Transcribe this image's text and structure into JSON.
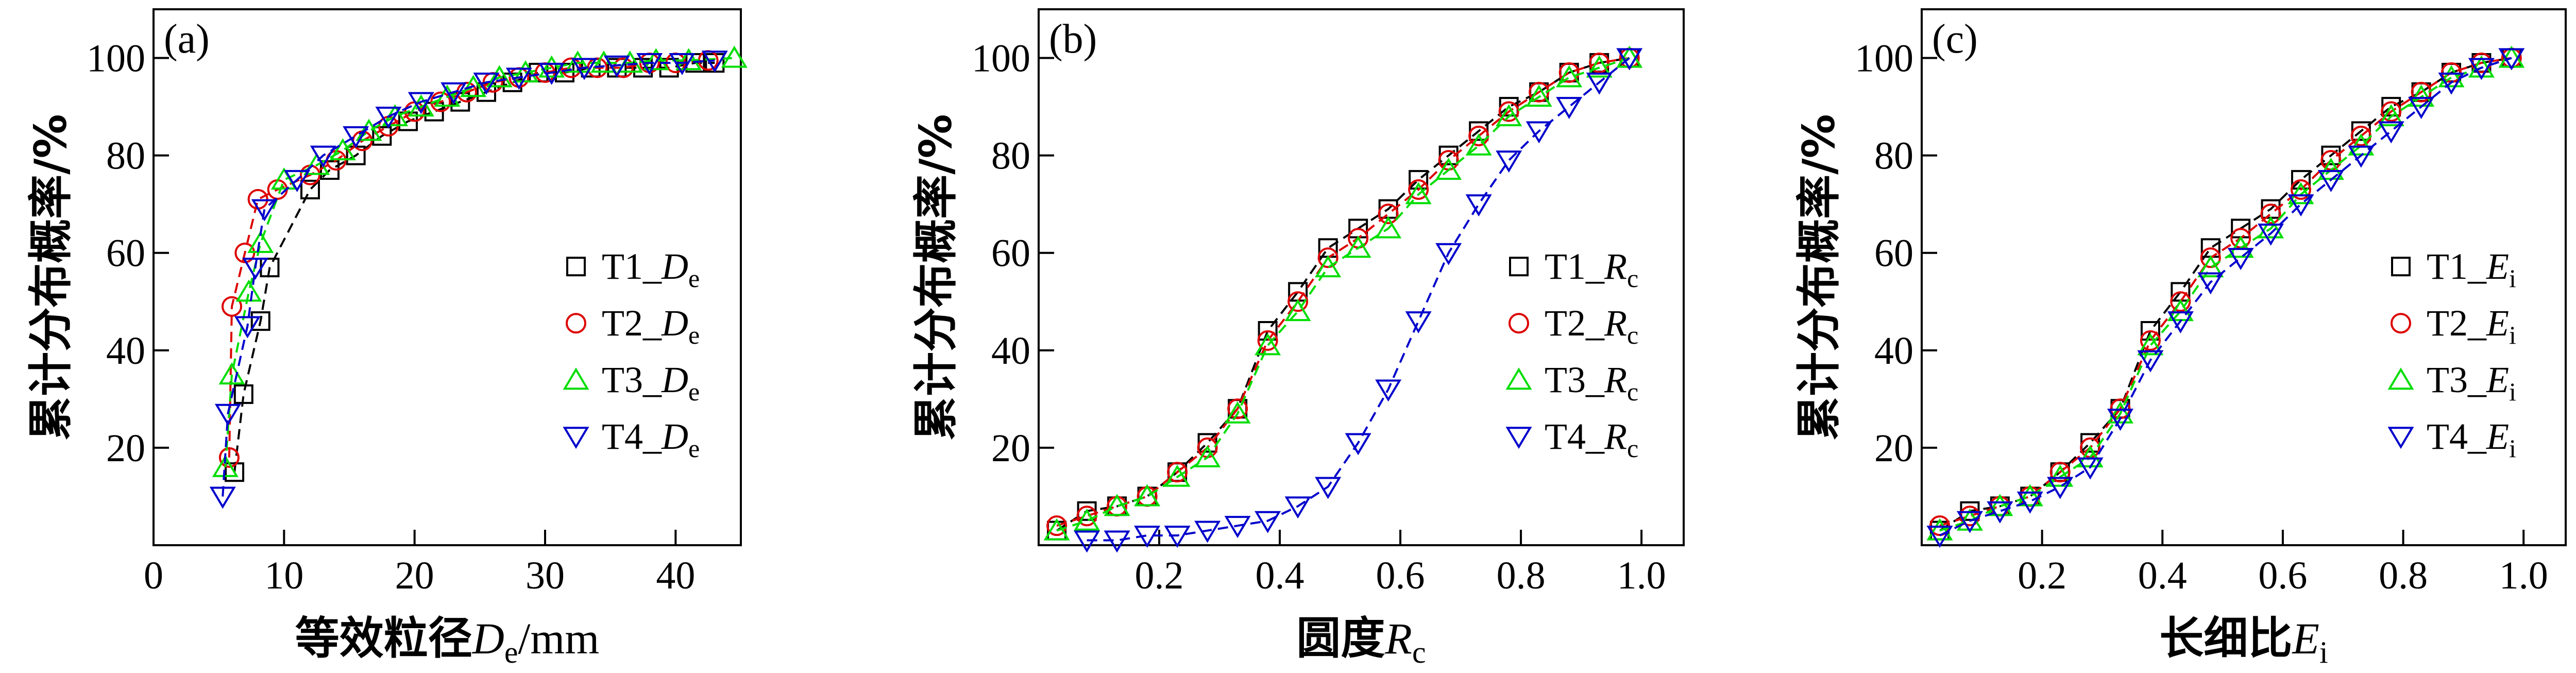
{
  "chart_data": [
    {
      "type": "scatter",
      "panel_label": "(a)",
      "xlabel": "等效粒径",
      "xlabel_symbol": "D",
      "xlabel_subscript": "e",
      "xlabel_unit": "/mm",
      "ylabel": "累计分布概率/%",
      "xlim": [
        0,
        45
      ],
      "ylim": [
        0,
        110
      ],
      "xticks": [
        0,
        10,
        20,
        30,
        40
      ],
      "yticks": [
        20,
        40,
        60,
        80,
        100
      ],
      "legend_position": "right",
      "series": [
        {
          "name": "T1_",
          "symbol": "D",
          "subscript": "e",
          "marker": "square",
          "color": "#000000",
          "x": [
            6.2,
            6.9,
            8.2,
            8.9,
            12,
            13.5,
            15.5,
            17.5,
            19.5,
            21.5,
            23.5,
            25.5,
            27.5,
            29.5,
            31.5,
            33.5,
            35.5,
            37.5,
            39.5,
            41.5,
            43
          ],
          "y": [
            15,
            31,
            46,
            57,
            73,
            77,
            80,
            84,
            87,
            89,
            91,
            93,
            95,
            97,
            97,
            98,
            98,
            98,
            98,
            99,
            99
          ]
        },
        {
          "name": "T2_",
          "symbol": "D",
          "subscript": "e",
          "marker": "circle",
          "color": "#dd0000",
          "x": [
            5.8,
            6.0,
            7.0,
            8.0,
            9.5,
            12,
            14,
            16,
            18,
            20,
            22,
            24,
            26,
            28,
            30,
            32,
            34,
            36,
            38,
            40,
            42.5
          ],
          "y": [
            18,
            49,
            60,
            71,
            73,
            76,
            79,
            83,
            86,
            89,
            91,
            93,
            95,
            96,
            97,
            98,
            98,
            98,
            99,
            99,
            99.5
          ]
        },
        {
          "name": "T3_",
          "symbol": "D",
          "subscript": "e",
          "marker": "triangle-up",
          "color": "#00dd00",
          "x": [
            5.5,
            6.0,
            7.3,
            8.2,
            10,
            12.5,
            14.5,
            16.5,
            18.5,
            20.5,
            22.5,
            24.5,
            26.5,
            28.5,
            30.5,
            32.5,
            34.5,
            36.5,
            38.5,
            41,
            44.5
          ],
          "y": [
            16,
            35,
            52,
            62,
            75,
            78,
            81,
            85,
            88,
            90,
            92,
            94,
            96,
            97,
            98,
            99,
            99,
            99,
            99.5,
            99.5,
            100
          ]
        },
        {
          "name": "T4_",
          "symbol": "D",
          "subscript": "e",
          "marker": "triangle-down",
          "color": "#0000cc",
          "x": [
            5.3,
            5.7,
            7.2,
            7.8,
            8.5,
            11,
            13,
            15.5,
            18,
            20.5,
            23,
            25.5,
            28,
            30.5,
            33,
            35.5,
            38,
            40.5,
            43
          ],
          "y": [
            10,
            27,
            45,
            57,
            69,
            75,
            80,
            84,
            88,
            91,
            93,
            95,
            96,
            97,
            98,
            98.5,
            99,
            99,
            99.5
          ]
        }
      ]
    },
    {
      "type": "scatter",
      "panel_label": "(b)",
      "xlabel": "圆度",
      "xlabel_symbol": "R",
      "xlabel_subscript": "c",
      "xlabel_unit": "",
      "ylabel": "累计分布概率/%",
      "xlim": [
        0,
        1.07
      ],
      "ylim": [
        0,
        110
      ],
      "xticks": [
        0.2,
        0.4,
        0.6,
        0.8,
        1.0
      ],
      "xtick_labels": [
        "0.2",
        "0.4",
        "0.6",
        "0.8",
        "1.0"
      ],
      "yticks": [
        20,
        40,
        60,
        80,
        100
      ],
      "legend_position": "right",
      "series": [
        {
          "name": "T1_",
          "symbol": "R",
          "subscript": "c",
          "marker": "square",
          "color": "#000000",
          "x": [
            0.03,
            0.08,
            0.13,
            0.18,
            0.23,
            0.28,
            0.33,
            0.38,
            0.43,
            0.48,
            0.53,
            0.58,
            0.63,
            0.68,
            0.73,
            0.78,
            0.83,
            0.88,
            0.93,
            0.98
          ],
          "y": [
            3,
            7,
            8,
            10,
            15,
            21,
            28,
            44,
            52,
            61,
            65,
            69,
            75,
            80,
            85,
            90,
            93,
            97,
            99,
            100
          ]
        },
        {
          "name": "T2_",
          "symbol": "R",
          "subscript": "c",
          "marker": "circle",
          "color": "#dd0000",
          "x": [
            0.03,
            0.08,
            0.13,
            0.18,
            0.23,
            0.28,
            0.33,
            0.38,
            0.43,
            0.48,
            0.53,
            0.58,
            0.63,
            0.68,
            0.73,
            0.78,
            0.83,
            0.88,
            0.93,
            0.98
          ],
          "y": [
            4,
            6,
            8,
            10,
            15,
            20,
            28,
            42,
            50,
            59,
            63,
            68,
            73,
            79,
            84,
            89,
            93,
            97,
            99,
            100
          ]
        },
        {
          "name": "T3_",
          "symbol": "R",
          "subscript": "c",
          "marker": "triangle-up",
          "color": "#00dd00",
          "x": [
            0.03,
            0.08,
            0.13,
            0.18,
            0.23,
            0.28,
            0.33,
            0.38,
            0.43,
            0.48,
            0.53,
            0.58,
            0.63,
            0.68,
            0.73,
            0.78,
            0.83,
            0.88,
            0.93,
            0.98
          ],
          "y": [
            3,
            5,
            8,
            10,
            14,
            18,
            27,
            41,
            48,
            57,
            61,
            65,
            72,
            77,
            82,
            88,
            92,
            96,
            98,
            100
          ]
        },
        {
          "name": "T4_",
          "symbol": "R",
          "subscript": "c",
          "marker": "triangle-down",
          "color": "#0000cc",
          "x": [
            0.08,
            0.13,
            0.18,
            0.23,
            0.28,
            0.33,
            0.38,
            0.43,
            0.48,
            0.53,
            0.58,
            0.63,
            0.68,
            0.73,
            0.78,
            0.83,
            0.88,
            0.93,
            0.98
          ],
          "y": [
            1,
            1,
            2,
            2,
            3,
            4,
            5,
            8,
            12,
            21,
            32,
            46,
            60,
            70,
            79,
            85,
            90,
            95,
            100
          ]
        }
      ]
    },
    {
      "type": "scatter",
      "panel_label": "(c)",
      "xlabel": "长细比",
      "xlabel_symbol": "E",
      "xlabel_subscript": "i",
      "xlabel_unit": "",
      "ylabel": "累计分布概率/%",
      "xlim": [
        0,
        1.07
      ],
      "ylim": [
        0,
        110
      ],
      "xticks": [
        0.2,
        0.4,
        0.6,
        0.8,
        1.0
      ],
      "xtick_labels": [
        "0.2",
        "0.4",
        "0.6",
        "0.8",
        "1.0"
      ],
      "yticks": [
        20,
        40,
        60,
        80,
        100
      ],
      "legend_position": "right",
      "series": [
        {
          "name": "T1_",
          "symbol": "E",
          "subscript": "i",
          "marker": "square",
          "color": "#000000",
          "x": [
            0.03,
            0.08,
            0.13,
            0.18,
            0.23,
            0.28,
            0.33,
            0.38,
            0.43,
            0.48,
            0.53,
            0.58,
            0.63,
            0.68,
            0.73,
            0.78,
            0.83,
            0.88,
            0.93,
            0.98
          ],
          "y": [
            3,
            7,
            8,
            10,
            15,
            21,
            28,
            44,
            52,
            61,
            65,
            69,
            75,
            80,
            85,
            90,
            93,
            97,
            99,
            100
          ]
        },
        {
          "name": "T2_",
          "symbol": "E",
          "subscript": "i",
          "marker": "circle",
          "color": "#dd0000",
          "x": [
            0.03,
            0.08,
            0.13,
            0.18,
            0.23,
            0.28,
            0.33,
            0.38,
            0.43,
            0.48,
            0.53,
            0.58,
            0.63,
            0.68,
            0.73,
            0.78,
            0.83,
            0.88,
            0.93,
            0.98
          ],
          "y": [
            4,
            6,
            8,
            10,
            15,
            20,
            28,
            42,
            50,
            59,
            63,
            68,
            73,
            79,
            84,
            89,
            93,
            97,
            99,
            100
          ]
        },
        {
          "name": "T3_",
          "symbol": "E",
          "subscript": "i",
          "marker": "triangle-up",
          "color": "#00dd00",
          "x": [
            0.03,
            0.08,
            0.13,
            0.18,
            0.23,
            0.28,
            0.33,
            0.38,
            0.43,
            0.48,
            0.53,
            0.58,
            0.63,
            0.68,
            0.73,
            0.78,
            0.83,
            0.88,
            0.93,
            0.98
          ],
          "y": [
            3,
            5,
            8,
            10,
            14,
            18,
            27,
            41,
            48,
            57,
            61,
            65,
            72,
            77,
            82,
            88,
            92,
            96,
            98,
            100
          ]
        },
        {
          "name": "T4_",
          "symbol": "E",
          "subscript": "i",
          "marker": "triangle-down",
          "color": "#0000cc",
          "x": [
            0.03,
            0.08,
            0.13,
            0.18,
            0.23,
            0.28,
            0.33,
            0.38,
            0.43,
            0.48,
            0.53,
            0.58,
            0.63,
            0.68,
            0.73,
            0.78,
            0.83,
            0.88,
            0.93,
            0.98
          ],
          "y": [
            2,
            5,
            7,
            9,
            12,
            16,
            26,
            38,
            46,
            54,
            59,
            64,
            70,
            75,
            80,
            85,
            90,
            95,
            98,
            100
          ]
        }
      ]
    }
  ]
}
